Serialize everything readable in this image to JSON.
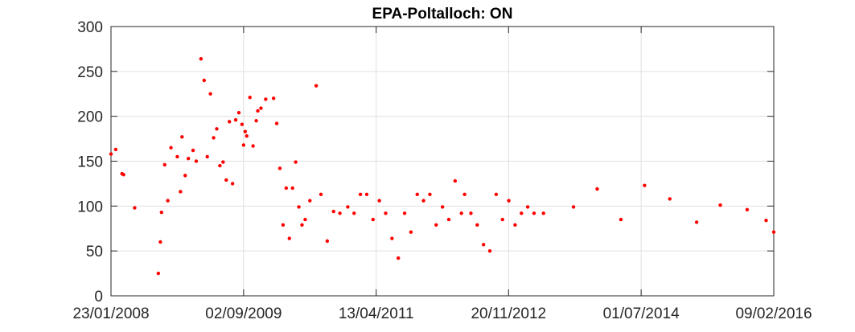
{
  "chart_data": {
    "type": "scatter",
    "title": "EPA-Poltalloch: ON",
    "xlabel": "",
    "ylabel": "",
    "x_axis_type": "date",
    "xlim": [
      "2008-01-23",
      "2016-02-09"
    ],
    "ylim": [
      0,
      300
    ],
    "xticks": [
      "2008-01-23",
      "2009-09-02",
      "2011-04-13",
      "2012-11-20",
      "2014-07-01",
      "2016-02-09"
    ],
    "xtick_labels": [
      "23/01/2008",
      "02/09/2009",
      "13/04/2011",
      "20/11/2012",
      "01/07/2014",
      "09/02/2016"
    ],
    "yticks": [
      0,
      50,
      100,
      150,
      200,
      250,
      300
    ],
    "ytick_labels": [
      "0",
      "50",
      "100",
      "150",
      "200",
      "250",
      "300"
    ],
    "grid": true,
    "marker_color": "#ff0000",
    "series": [
      {
        "points": [
          [
            "2008-01-23",
            158
          ],
          [
            "2008-02-13",
            163
          ],
          [
            "2008-03-12",
            136
          ],
          [
            "2008-03-19",
            135
          ],
          [
            "2008-05-07",
            98
          ],
          [
            "2008-08-20",
            25
          ],
          [
            "2008-08-29",
            60
          ],
          [
            "2008-09-03",
            93
          ],
          [
            "2008-09-17",
            146
          ],
          [
            "2008-10-01",
            106
          ],
          [
            "2008-10-15",
            165
          ],
          [
            "2008-11-12",
            155
          ],
          [
            "2008-11-26",
            116
          ],
          [
            "2008-12-03",
            177
          ],
          [
            "2008-12-17",
            134
          ],
          [
            "2008-12-31",
            153
          ],
          [
            "2009-01-21",
            162
          ],
          [
            "2009-02-04",
            150
          ],
          [
            "2009-02-25",
            264
          ],
          [
            "2009-03-11",
            240
          ],
          [
            "2009-03-25",
            155
          ],
          [
            "2009-04-08",
            225
          ],
          [
            "2009-04-22",
            176
          ],
          [
            "2009-05-06",
            186
          ],
          [
            "2009-05-20",
            145
          ],
          [
            "2009-06-03",
            149
          ],
          [
            "2009-06-17",
            129
          ],
          [
            "2009-07-01",
            194
          ],
          [
            "2009-07-15",
            125
          ],
          [
            "2009-07-29",
            196
          ],
          [
            "2009-08-12",
            204
          ],
          [
            "2009-08-26",
            191
          ],
          [
            "2009-09-02",
            168
          ],
          [
            "2009-09-09",
            183
          ],
          [
            "2009-09-16",
            178
          ],
          [
            "2009-09-30",
            221
          ],
          [
            "2009-10-14",
            167
          ],
          [
            "2009-10-28",
            195
          ],
          [
            "2009-11-04",
            206
          ],
          [
            "2009-11-18",
            209
          ],
          [
            "2009-12-09",
            219
          ],
          [
            "2010-01-13",
            220
          ],
          [
            "2010-01-27",
            192
          ],
          [
            "2010-02-10",
            142
          ],
          [
            "2010-02-24",
            79
          ],
          [
            "2010-03-10",
            120
          ],
          [
            "2010-03-24",
            64
          ],
          [
            "2010-04-07",
            120
          ],
          [
            "2010-04-21",
            149
          ],
          [
            "2010-05-05",
            99
          ],
          [
            "2010-05-19",
            79
          ],
          [
            "2010-06-02",
            85
          ],
          [
            "2010-06-23",
            106
          ],
          [
            "2010-07-21",
            234
          ],
          [
            "2010-08-11",
            113
          ],
          [
            "2010-09-08",
            61
          ],
          [
            "2010-10-06",
            94
          ],
          [
            "2010-11-03",
            92
          ],
          [
            "2010-12-08",
            99
          ],
          [
            "2011-01-05",
            92
          ],
          [
            "2011-02-02",
            113
          ],
          [
            "2011-03-02",
            113
          ],
          [
            "2011-03-30",
            85
          ],
          [
            "2011-04-27",
            106
          ],
          [
            "2011-05-25",
            92
          ],
          [
            "2011-06-22",
            64
          ],
          [
            "2011-07-20",
            42
          ],
          [
            "2011-08-17",
            92
          ],
          [
            "2011-09-14",
            71
          ],
          [
            "2011-10-12",
            113
          ],
          [
            "2011-11-09",
            106
          ],
          [
            "2011-12-07",
            113
          ],
          [
            "2012-01-04",
            79
          ],
          [
            "2012-02-01",
            99
          ],
          [
            "2012-02-29",
            85
          ],
          [
            "2012-03-28",
            128
          ],
          [
            "2012-04-25",
            92
          ],
          [
            "2012-05-09",
            113
          ],
          [
            "2012-06-06",
            92
          ],
          [
            "2012-07-04",
            79
          ],
          [
            "2012-08-01",
            57
          ],
          [
            "2012-08-29",
            50
          ],
          [
            "2012-09-26",
            113
          ],
          [
            "2012-10-24",
            85
          ],
          [
            "2012-11-21",
            106
          ],
          [
            "2012-12-19",
            79
          ],
          [
            "2013-01-16",
            92
          ],
          [
            "2013-02-13",
            99
          ],
          [
            "2013-03-13",
            92
          ],
          [
            "2013-04-24",
            92
          ],
          [
            "2013-09-04",
            99
          ],
          [
            "2013-12-18",
            119
          ],
          [
            "2014-04-02",
            85
          ],
          [
            "2014-07-16",
            123
          ],
          [
            "2014-11-05",
            108
          ],
          [
            "2015-03-04",
            82
          ],
          [
            "2015-06-17",
            101
          ],
          [
            "2015-10-14",
            96
          ],
          [
            "2016-01-06",
            84
          ],
          [
            "2016-02-09",
            71
          ]
        ]
      }
    ]
  }
}
